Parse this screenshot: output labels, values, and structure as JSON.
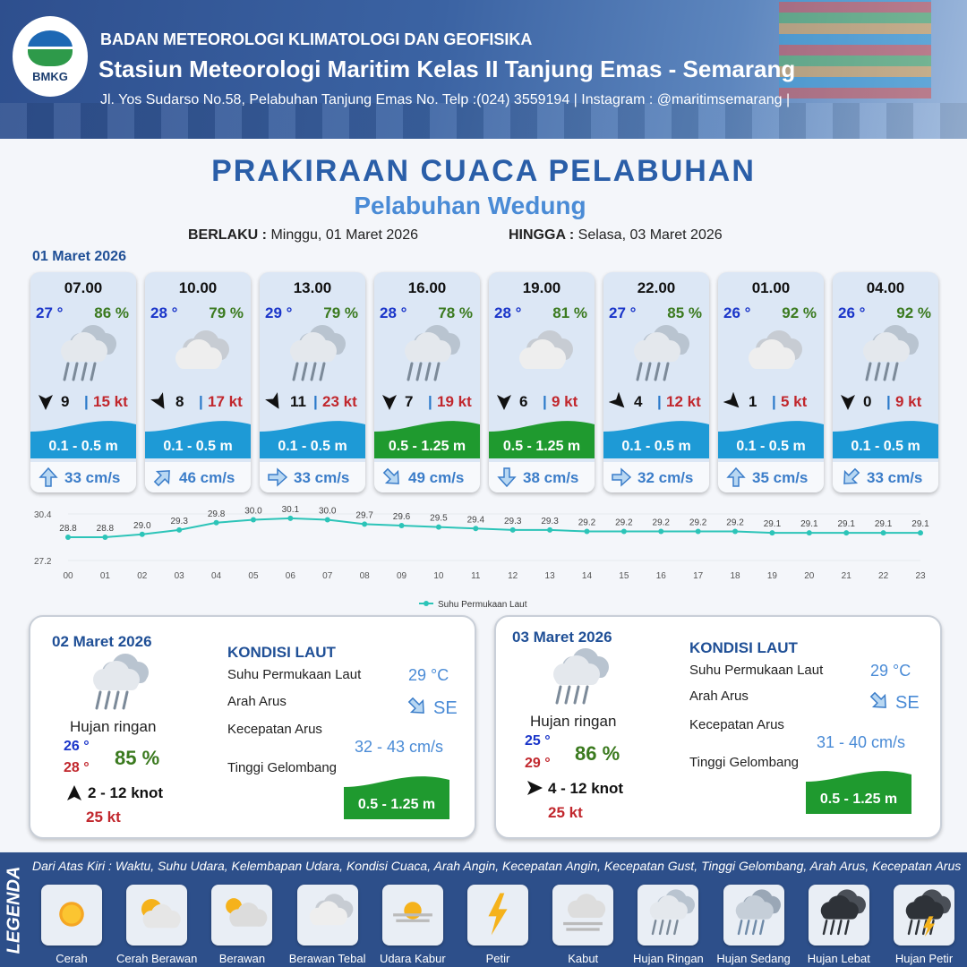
{
  "header": {
    "logo_text": "BMKG",
    "agency": "BADAN METEOROLOGI KLIMATOLOGI DAN GEOFISIKA",
    "station": "Stasiun Meteorologi Maritim Kelas II Tanjung Emas - Semarang",
    "address": "Jl. Yos Sudarso No.58, Pelabuhan Tanjung Emas No. Telp :(024) 3559194 | Instagram : @maritimsemarang |"
  },
  "title": "PRAKIRAAN CUACA PELABUHAN",
  "subtitle": "Pelabuhan Wedung",
  "validity": {
    "from_label": "BERLAKU :",
    "from_value": "Minggu, 01 Maret 2026",
    "to_label": "HINGGA :",
    "to_value": "Selasa, 03 Maret 2026"
  },
  "day1_date": "01 Maret 2026",
  "colors": {
    "wave_blue": "#1e9ad6",
    "wave_green": "#1f9a2f",
    "title": "#2a5ea8",
    "temp": "#1a35c9",
    "humidity": "#3b7a1f",
    "gust": "#c1272d"
  },
  "hourly": [
    {
      "time": "07.00",
      "temp": "27 °",
      "hum": "86 %",
      "icon": "light-rain-icon",
      "wind_dir_deg": 90,
      "wind": "9",
      "sep": "|",
      "gust": "15 kt",
      "wave": "0.1 - 0.5 m",
      "wave_color": "blue",
      "cur_dir_deg": 0,
      "cur": "33 cm/s"
    },
    {
      "time": "10.00",
      "temp": "28 °",
      "hum": "79 %",
      "icon": "thick-cloudy-icon",
      "wind_dir_deg": 60,
      "wind": "8",
      "sep": "|",
      "gust": "17 kt",
      "wave": "0.1 - 0.5 m",
      "wave_color": "blue",
      "cur_dir_deg": 45,
      "cur": "46 cm/s"
    },
    {
      "time": "13.00",
      "temp": "29 °",
      "hum": "79 %",
      "icon": "light-rain-icon",
      "wind_dir_deg": 60,
      "wind": "11",
      "sep": "|",
      "gust": "23 kt",
      "wave": "0.1 - 0.5 m",
      "wave_color": "blue",
      "cur_dir_deg": 90,
      "cur": "33 cm/s"
    },
    {
      "time": "16.00",
      "temp": "28 °",
      "hum": "78 %",
      "icon": "light-rain-icon",
      "wind_dir_deg": 90,
      "wind": "7",
      "sep": "|",
      "gust": "19 kt",
      "wave": "0.5 - 1.25 m",
      "wave_color": "green",
      "cur_dir_deg": 135,
      "cur": "49 cm/s"
    },
    {
      "time": "19.00",
      "temp": "28 °",
      "hum": "81 %",
      "icon": "thick-cloudy-icon",
      "wind_dir_deg": 90,
      "wind": "6",
      "sep": "|",
      "gust": "9 kt",
      "wave": "0.5 - 1.25 m",
      "wave_color": "green",
      "cur_dir_deg": 180,
      "cur": "38 cm/s"
    },
    {
      "time": "22.00",
      "temp": "27 °",
      "hum": "85 %",
      "icon": "light-rain-icon",
      "wind_dir_deg": 45,
      "wind": "4",
      "sep": "|",
      "gust": "12 kt",
      "wave": "0.1 - 0.5 m",
      "wave_color": "blue",
      "cur_dir_deg": 90,
      "cur": "32 cm/s"
    },
    {
      "time": "01.00",
      "temp": "26 °",
      "hum": "92 %",
      "icon": "thick-cloudy-icon",
      "wind_dir_deg": 45,
      "wind": "1",
      "sep": "|",
      "gust": "5 kt",
      "wave": "0.1 - 0.5 m",
      "wave_color": "blue",
      "cur_dir_deg": 0,
      "cur": "35 cm/s"
    },
    {
      "time": "04.00",
      "temp": "26 °",
      "hum": "92 %",
      "icon": "light-rain-icon",
      "wind_dir_deg": 90,
      "wind": "0",
      "sep": "|",
      "gust": "9 kt",
      "wave": "0.1 - 0.5 m",
      "wave_color": "blue",
      "cur_dir_deg": 225,
      "cur": "33 cm/s"
    }
  ],
  "chart_data": {
    "type": "line",
    "categories": [
      "00",
      "01",
      "02",
      "03",
      "04",
      "05",
      "06",
      "07",
      "08",
      "09",
      "10",
      "11",
      "12",
      "13",
      "14",
      "15",
      "16",
      "17",
      "18",
      "19",
      "20",
      "21",
      "22",
      "23"
    ],
    "series": [
      {
        "name": "Suhu Permukaan Laut",
        "values": [
          28.8,
          28.8,
          29.0,
          29.3,
          29.8,
          30.0,
          30.1,
          30.0,
          29.7,
          29.6,
          29.5,
          29.4,
          29.3,
          29.3,
          29.2,
          29.2,
          29.2,
          29.2,
          29.2,
          29.1,
          29.1,
          29.1,
          29.1,
          29.1
        ]
      }
    ],
    "y_ticks": [
      "30.4",
      "27.2"
    ],
    "ylim": [
      27.2,
      30.4
    ],
    "legend": "bottom",
    "color": "#2cc4b8"
  },
  "day2": {
    "date": "02 Maret 2026",
    "icon": "light-rain-icon",
    "condition": "Hujan ringan",
    "tmin": "26 °",
    "tmax": "28 °",
    "hum": "85 %",
    "wind_dir_deg": 0,
    "wind": "2  - 12 knot",
    "gust": "25 kt",
    "sea_title": "KONDISI LAUT",
    "sst_label": "Suhu Permukaan Laut",
    "sst": "29 °C",
    "cur_dir_label": "Arah Arus",
    "cur_dir": "SE",
    "cur_speed_label": "Kecepatan Arus",
    "cur_speed": "32 - 43 cm/s",
    "wave_label": "Tinggi Gelombang",
    "wave": "0.5 - 1.25 m"
  },
  "day3": {
    "date": "03 Maret 2026",
    "icon": "light-rain-icon",
    "condition": "Hujan ringan",
    "tmin": "25 °",
    "tmax": "29 °",
    "hum": "86 %",
    "wind_dir_deg": 90,
    "wind": "4  - 12 knot",
    "gust": "25 kt",
    "sea_title": "KONDISI LAUT",
    "sst_label": "Suhu Permukaan Laut",
    "sst": "29 °C",
    "cur_dir_label": "Arah Arus",
    "cur_dir": "SE",
    "cur_speed_label": "Kecepatan Arus",
    "cur_speed": "31 - 40 cm/s",
    "wave_label": "Tinggi Gelombang",
    "wave": "0.5 - 1.25 m"
  },
  "legend": {
    "title": "LEGENDA",
    "description": "Dari Atas Kiri : Waktu, Suhu Udara, Kelembapan Udara, Kondisi Cuaca, Arah Angin, Kecepatan Angin, Kecepatan Gust, Tinggi Gelombang, Arah Arus, Kecepatan Arus",
    "items": [
      {
        "label": "Cerah",
        "icon": "sunny-icon"
      },
      {
        "label": "Cerah Berawan",
        "icon": "partly-sunny-icon"
      },
      {
        "label": "Berawan",
        "icon": "cloudy-sun-icon"
      },
      {
        "label": "Berawan Tebal",
        "icon": "thick-cloudy-icon"
      },
      {
        "label": "Udara Kabur",
        "icon": "haze-icon"
      },
      {
        "label": "Petir",
        "icon": "lightning-icon"
      },
      {
        "label": "Kabut",
        "icon": "fog-icon"
      },
      {
        "label": "Hujan Ringan",
        "icon": "light-rain-icon"
      },
      {
        "label": "Hujan Sedang",
        "icon": "moderate-rain-icon"
      },
      {
        "label": "Hujan Lebat",
        "icon": "heavy-rain-icon"
      },
      {
        "label": "Hujan Petir",
        "icon": "thunderstorm-icon"
      }
    ]
  }
}
